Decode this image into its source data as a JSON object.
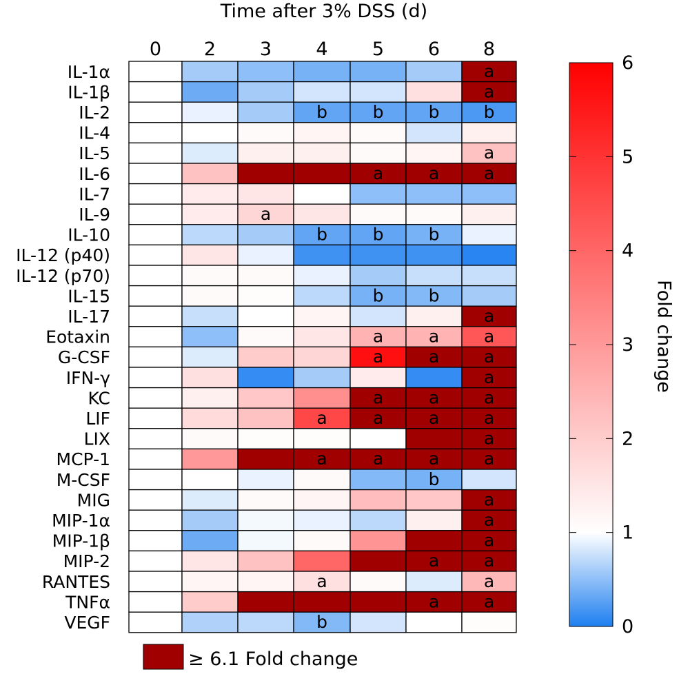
{
  "chart_data": {
    "type": "heatmap",
    "title": "Time after 3% DSS (d)",
    "columns": [
      "0",
      "2",
      "3",
      "4",
      "5",
      "6",
      "8"
    ],
    "rows": [
      "IL-1α",
      "IL-1β",
      "IL-2",
      "IL-4",
      "IL-5",
      "IL-6",
      "IL-7",
      "IL-9",
      "IL-10",
      "IL-12 (p40)",
      "IL-12 (p70)",
      "IL-15",
      "IL-17",
      "Eotaxin",
      "G-CSF",
      "IFN-γ",
      "KC",
      "LIF",
      "LIX",
      "MCP-1",
      "M-CSF",
      "MIG",
      "MIP-1α",
      "MIP-1β",
      "MIP-2",
      "RANTES",
      "TNFα",
      "VEGF"
    ],
    "values": [
      [
        1,
        0.6,
        0.5,
        0.4,
        0.4,
        0.6,
        7
      ],
      [
        1,
        0.35,
        0.6,
        0.8,
        0.8,
        1.6,
        7
      ],
      [
        1,
        0.9,
        0.6,
        0.3,
        0.3,
        0.3,
        0.2
      ],
      [
        1,
        1,
        1.1,
        1.2,
        1.1,
        0.8,
        1.3
      ],
      [
        1,
        0.85,
        1.3,
        1.3,
        1.1,
        1.2,
        2.2
      ],
      [
        1,
        2.2,
        7,
        7,
        7,
        7,
        7
      ],
      [
        1,
        1.4,
        1.5,
        1,
        0.5,
        0.5,
        0.5
      ],
      [
        1,
        1.4,
        1.8,
        1.5,
        1.1,
        1.1,
        1.3
      ],
      [
        1,
        0.7,
        0.6,
        0.3,
        0.3,
        0.4,
        0.9
      ],
      [
        1,
        1.5,
        0.9,
        0.15,
        0.15,
        0.15,
        0.05
      ],
      [
        1,
        1.1,
        1.1,
        0.9,
        0.6,
        0.75,
        0.75
      ],
      [
        1,
        1.1,
        1.05,
        0.7,
        0.4,
        0.45,
        0.6
      ],
      [
        1,
        0.75,
        1,
        1.2,
        0.8,
        1.3,
        7
      ],
      [
        1,
        0.5,
        1.1,
        1.5,
        2.5,
        2.5,
        4.3
      ],
      [
        1,
        0.85,
        2.0,
        1.8,
        5.7,
        7,
        7
      ],
      [
        1,
        1.6,
        0.1,
        0.6,
        1.4,
        0.1,
        7
      ],
      [
        1,
        1.3,
        2.1,
        3.2,
        7,
        7,
        7
      ],
      [
        1,
        1.7,
        2.2,
        4.6,
        7,
        7,
        7
      ],
      [
        1,
        1.1,
        1.05,
        1.05,
        1,
        7,
        7
      ],
      [
        1,
        3.0,
        7,
        7,
        7,
        7,
        7
      ],
      [
        1,
        1,
        0.9,
        1.1,
        0.45,
        0.4,
        0.8
      ],
      [
        1,
        0.85,
        1.1,
        1.2,
        2.3,
        2.1,
        7
      ],
      [
        1,
        0.6,
        0.95,
        0.9,
        0.7,
        1.3,
        7
      ],
      [
        1,
        0.35,
        0.95,
        1.1,
        3.1,
        7,
        7
      ],
      [
        1,
        1.5,
        2.2,
        4.0,
        7,
        7,
        7
      ],
      [
        1,
        1.2,
        1.2,
        1.6,
        1.1,
        0.85,
        2.4
      ],
      [
        1,
        2.0,
        7,
        7,
        7,
        7,
        7
      ],
      [
        1,
        0.65,
        0.7,
        0.45,
        0.8,
        1,
        1.05
      ]
    ],
    "annotations": [
      [
        "",
        "",
        "",
        "",
        "",
        "",
        "a"
      ],
      [
        "",
        "",
        "",
        "",
        "",
        "",
        "a"
      ],
      [
        "",
        "",
        "",
        "b",
        "b",
        "b",
        "b"
      ],
      [
        "",
        "",
        "",
        "",
        "",
        "",
        ""
      ],
      [
        "",
        "",
        "",
        "",
        "",
        "",
        "a"
      ],
      [
        "",
        "",
        "",
        "",
        "a",
        "a",
        "a"
      ],
      [
        "",
        "",
        "",
        "",
        "",
        "",
        ""
      ],
      [
        "",
        "",
        "a",
        "",
        "",
        "",
        ""
      ],
      [
        "",
        "",
        "",
        "b",
        "b",
        "b",
        ""
      ],
      [
        "",
        "",
        "",
        "",
        "",
        "",
        ""
      ],
      [
        "",
        "",
        "",
        "",
        "",
        "",
        ""
      ],
      [
        "",
        "",
        "",
        "",
        "b",
        "b",
        ""
      ],
      [
        "",
        "",
        "",
        "",
        "",
        "",
        "a"
      ],
      [
        "",
        "",
        "",
        "",
        "a",
        "a",
        "a"
      ],
      [
        "",
        "",
        "",
        "",
        "a",
        "a",
        "a"
      ],
      [
        "",
        "",
        "",
        "",
        "",
        "",
        "a"
      ],
      [
        "",
        "",
        "",
        "",
        "a",
        "a",
        "a"
      ],
      [
        "",
        "",
        "",
        "a",
        "a",
        "a",
        "a"
      ],
      [
        "",
        "",
        "",
        "",
        "",
        "",
        "a"
      ],
      [
        "",
        "",
        "",
        "a",
        "a",
        "a",
        "a"
      ],
      [
        "",
        "",
        "",
        "",
        "",
        "b",
        ""
      ],
      [
        "",
        "",
        "",
        "",
        "",
        "",
        "a"
      ],
      [
        "",
        "",
        "",
        "",
        "",
        "",
        "a"
      ],
      [
        "",
        "",
        "",
        "",
        "",
        "",
        "a"
      ],
      [
        "",
        "",
        "",
        "",
        "",
        "a",
        "a"
      ],
      [
        "",
        "",
        "",
        "a",
        "",
        "",
        "a"
      ],
      [
        "",
        "",
        "",
        "",
        "",
        "a",
        "a"
      ],
      [
        "",
        "",
        "",
        "b",
        "",
        "",
        ""
      ]
    ],
    "colorbar": {
      "label": "Fold change",
      "range": [
        0,
        6
      ],
      "ticks": [
        "0",
        "1",
        "2",
        "3",
        "4",
        "5",
        "6"
      ],
      "colors": {
        "low": "#1e7ff0",
        "mid": "#ffffff",
        "high": "#ff0000"
      }
    },
    "overflow_legend": {
      "label": "≥ 6.1 Fold change",
      "threshold": 6.1,
      "color": "#a00000"
    }
  }
}
